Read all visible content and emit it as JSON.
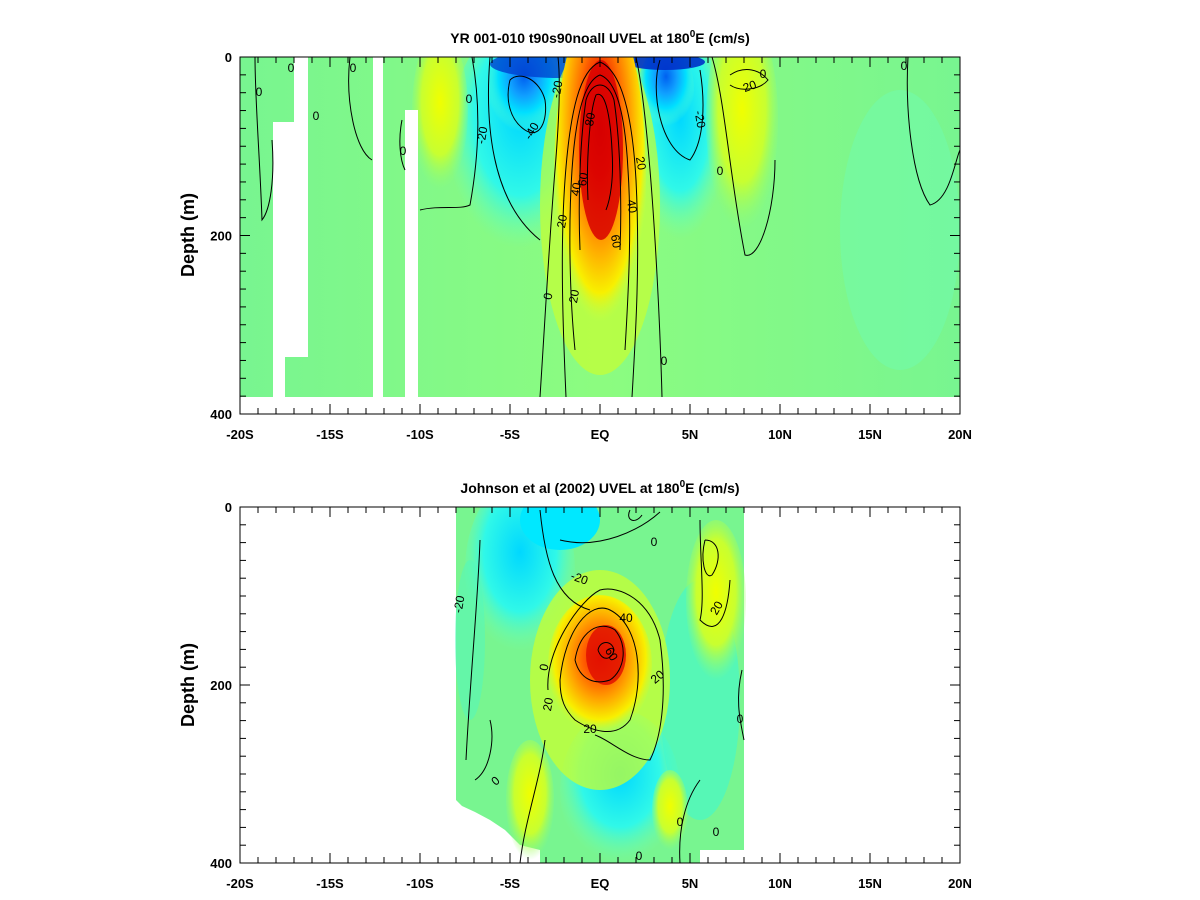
{
  "chart_data": [
    {
      "type": "heatmap",
      "title_main": "YR 001-010 t90s90noall UVEL at 180",
      "title_sup": "0",
      "title_end": "E (cm/s)",
      "ylabel": "Depth (m)",
      "x_ticks": [
        "-20S",
        "-15S",
        "-10S",
        "-5S",
        "EQ",
        "5N",
        "10N",
        "15N",
        "20N"
      ],
      "y_ticks": [
        "0",
        "200",
        "400"
      ],
      "x_range": [
        -20,
        20
      ],
      "y_range": [
        0,
        400
      ],
      "contour_interval": 20,
      "contour_labels": [
        "0",
        "20",
        "40",
        "60",
        "-20",
        "-40"
      ],
      "features": [
        {
          "name": "equatorial undercurrent core",
          "lat": 0,
          "depth": 120,
          "max_speed": 80
        },
        {
          "name": "westward flow south",
          "lat": -4.5,
          "depth": 40,
          "min_speed": -40
        },
        {
          "name": "westward flow north",
          "lat": 4,
          "depth": 60,
          "min_speed": -20
        },
        {
          "name": "eastward flow north",
          "lat": 8,
          "depth": 60,
          "max_speed": 20
        }
      ],
      "colorbar": [
        "#0000d8",
        "#0070ff",
        "#00e8ff",
        "#80ff80",
        "#f8ff00",
        "#ff9000",
        "#e00000"
      ]
    },
    {
      "type": "heatmap",
      "title_main": "Johnson et al (2002) UVEL at 180",
      "title_sup": "0",
      "title_end": "E (cm/s)",
      "ylabel": "Depth (m)",
      "x_ticks": [
        "-20S",
        "-15S",
        "-10S",
        "-5S",
        "EQ",
        "5N",
        "10N",
        "15N",
        "20N"
      ],
      "y_ticks": [
        "0",
        "200",
        "400"
      ],
      "x_range": [
        -20,
        20
      ],
      "y_range": [
        0,
        400
      ],
      "data_extent_lat": [
        -8,
        8
      ],
      "contour_interval": 20,
      "contour_labels": [
        "0",
        "20",
        "40",
        "60",
        "-20"
      ],
      "features": [
        {
          "name": "equatorial undercurrent core",
          "lat": 0.5,
          "depth": 170,
          "max_speed": 60
        },
        {
          "name": "westward surface flow",
          "lat": -2,
          "depth": 20,
          "min_speed": -20
        },
        {
          "name": "eastward flow north",
          "lat": 6.5,
          "depth": 100,
          "max_speed": 20
        }
      ]
    }
  ]
}
